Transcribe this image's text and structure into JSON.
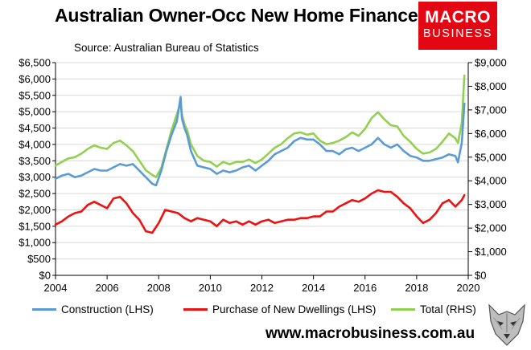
{
  "header": {
    "title": "Australian Owner-Occ New Home Finance",
    "source": "Source: Australian Bureau of Statistics"
  },
  "logo": {
    "line1": "MACRO",
    "line2": "BUSINESS"
  },
  "footer": {
    "url": "www.macrobusiness.com.au"
  },
  "colors": {
    "construction": "#5b9bd5",
    "purchase": "#ee1111",
    "total": "#92d050",
    "grid": "#d9d9d9",
    "logo_bg": "#e30613"
  },
  "chart_data": {
    "type": "line",
    "x_range": [
      2004,
      2020
    ],
    "x_ticks": [
      "2004",
      "2006",
      "2008",
      "2010",
      "2012",
      "2014",
      "2016",
      "2018",
      "2020"
    ],
    "y_left": {
      "range": [
        0,
        6500
      ],
      "ticks": [
        "$0",
        "$500",
        "$1,000",
        "$1,500",
        "$2,000",
        "$2,500",
        "$3,000",
        "$3,500",
        "$4,000",
        "$4,500",
        "$5,000",
        "$5,500",
        "$6,000",
        "$6,500"
      ]
    },
    "y_right": {
      "range": [
        0,
        9000
      ],
      "ticks": [
        "$0",
        "$1,000",
        "$2,000",
        "$3,000",
        "$4,000",
        "$5,000",
        "$6,000",
        "$7,000",
        "$8,000",
        "$9,000"
      ]
    },
    "grid": "horizontal",
    "legend_position": "bottom",
    "series": [
      {
        "name": "Construction (LHS)",
        "axis": "left",
        "x": [
          2004.0,
          2004.25,
          2004.5,
          2004.75,
          2005.0,
          2005.25,
          2005.5,
          2005.75,
          2006.0,
          2006.25,
          2006.5,
          2006.75,
          2007.0,
          2007.25,
          2007.5,
          2007.75,
          2007.9,
          2008.1,
          2008.3,
          2008.5,
          2008.7,
          2008.85,
          2008.9,
          2009.0,
          2009.1,
          2009.25,
          2009.5,
          2009.75,
          2010.0,
          2010.25,
          2010.5,
          2010.75,
          2011.0,
          2011.25,
          2011.5,
          2011.75,
          2012.0,
          2012.25,
          2012.5,
          2012.75,
          2013.0,
          2013.25,
          2013.5,
          2013.75,
          2014.0,
          2014.25,
          2014.5,
          2014.75,
          2015.0,
          2015.25,
          2015.5,
          2015.75,
          2016.0,
          2016.25,
          2016.5,
          2016.75,
          2017.0,
          2017.25,
          2017.5,
          2017.75,
          2018.0,
          2018.25,
          2018.5,
          2018.75,
          2019.0,
          2019.25,
          2019.5,
          2019.6,
          2019.75,
          2019.85
        ],
        "y": [
          2950,
          3050,
          3100,
          3000,
          3050,
          3150,
          3250,
          3200,
          3200,
          3300,
          3400,
          3350,
          3400,
          3200,
          3000,
          2800,
          2750,
          3200,
          3800,
          4300,
          4700,
          5450,
          4800,
          4500,
          4300,
          3800,
          3350,
          3300,
          3250,
          3100,
          3200,
          3150,
          3200,
          3300,
          3350,
          3200,
          3350,
          3500,
          3700,
          3800,
          3900,
          4100,
          4200,
          4150,
          4150,
          4000,
          3800,
          3800,
          3700,
          3850,
          3900,
          3800,
          3900,
          4000,
          4200,
          4000,
          3900,
          4000,
          3800,
          3650,
          3600,
          3500,
          3500,
          3550,
          3600,
          3700,
          3650,
          3450,
          4050,
          5250
        ]
      },
      {
        "name": "Purchase of New Dwellings (LHS)",
        "axis": "left",
        "x": [
          2004.0,
          2004.25,
          2004.5,
          2004.75,
          2005.0,
          2005.25,
          2005.5,
          2005.75,
          2006.0,
          2006.25,
          2006.5,
          2006.75,
          2007.0,
          2007.25,
          2007.5,
          2007.75,
          2008.0,
          2008.25,
          2008.5,
          2008.75,
          2009.0,
          2009.25,
          2009.5,
          2009.75,
          2010.0,
          2010.25,
          2010.5,
          2010.75,
          2011.0,
          2011.25,
          2011.5,
          2011.75,
          2012.0,
          2012.25,
          2012.5,
          2012.75,
          2013.0,
          2013.25,
          2013.5,
          2013.75,
          2014.0,
          2014.25,
          2014.5,
          2014.75,
          2015.0,
          2015.25,
          2015.5,
          2015.75,
          2016.0,
          2016.25,
          2016.5,
          2016.75,
          2017.0,
          2017.25,
          2017.5,
          2017.75,
          2018.0,
          2018.25,
          2018.5,
          2018.75,
          2019.0,
          2019.25,
          2019.5,
          2019.75,
          2019.85
        ],
        "y": [
          1550,
          1650,
          1800,
          1900,
          1950,
          2150,
          2250,
          2150,
          2050,
          2350,
          2400,
          2200,
          1900,
          1700,
          1350,
          1300,
          1600,
          2000,
          1950,
          1900,
          1750,
          1650,
          1750,
          1700,
          1650,
          1500,
          1700,
          1600,
          1650,
          1550,
          1650,
          1550,
          1650,
          1700,
          1600,
          1650,
          1700,
          1700,
          1750,
          1750,
          1800,
          1800,
          1950,
          1950,
          2100,
          2200,
          2300,
          2250,
          2350,
          2500,
          2600,
          2550,
          2550,
          2400,
          2200,
          2050,
          1800,
          1600,
          1700,
          1900,
          2200,
          2300,
          2100,
          2300,
          2450
        ]
      },
      {
        "name": "Total (RHS)",
        "axis": "right",
        "x": [
          2004.0,
          2004.25,
          2004.5,
          2004.75,
          2005.0,
          2005.25,
          2005.5,
          2005.75,
          2006.0,
          2006.25,
          2006.5,
          2006.75,
          2007.0,
          2007.25,
          2007.5,
          2007.75,
          2007.9,
          2008.1,
          2008.3,
          2008.5,
          2008.7,
          2008.85,
          2008.9,
          2009.0,
          2009.1,
          2009.25,
          2009.5,
          2009.75,
          2010.0,
          2010.25,
          2010.5,
          2010.75,
          2011.0,
          2011.25,
          2011.5,
          2011.75,
          2012.0,
          2012.25,
          2012.5,
          2012.75,
          2013.0,
          2013.25,
          2013.5,
          2013.75,
          2014.0,
          2014.25,
          2014.5,
          2014.75,
          2015.0,
          2015.25,
          2015.5,
          2015.75,
          2016.0,
          2016.25,
          2016.5,
          2016.75,
          2017.0,
          2017.25,
          2017.5,
          2017.75,
          2018.0,
          2018.25,
          2018.5,
          2018.75,
          2019.0,
          2019.25,
          2019.5,
          2019.6,
          2019.75,
          2019.85
        ],
        "y": [
          4650,
          4800,
          4950,
          5000,
          5150,
          5350,
          5500,
          5400,
          5350,
          5600,
          5700,
          5500,
          5250,
          4850,
          4450,
          4250,
          4150,
          4550,
          5350,
          6150,
          6800,
          7300,
          6800,
          6400,
          6150,
          5550,
          5050,
          4850,
          4800,
          4600,
          4800,
          4700,
          4800,
          4800,
          4900,
          4750,
          4900,
          5150,
          5400,
          5550,
          5800,
          6000,
          6050,
          5950,
          6000,
          5700,
          5550,
          5600,
          5700,
          5850,
          6050,
          5900,
          6200,
          6650,
          6900,
          6600,
          6350,
          6300,
          5900,
          5650,
          5350,
          5150,
          5200,
          5350,
          5650,
          6000,
          5800,
          5600,
          6450,
          8450
        ]
      }
    ]
  }
}
